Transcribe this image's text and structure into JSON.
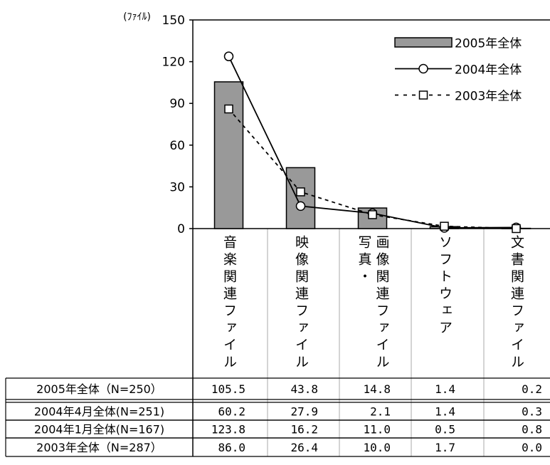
{
  "chart_data": {
    "type": "bar",
    "ylabel": "(ﾌｧｲﾙ)",
    "ylim": [
      0,
      150
    ],
    "yticks": [
      0,
      30,
      60,
      90,
      120,
      150
    ],
    "categories": [
      "音楽関連ファイル",
      "映像関連ファイル",
      "写真・\n画像関連ファイル",
      "ソフトウェア",
      "文書関連ファイル"
    ],
    "series": [
      {
        "name": "2005年全体",
        "type": "bar",
        "values": [
          105.5,
          43.8,
          14.8,
          1.4,
          0.2
        ],
        "color": "#999999"
      },
      {
        "name": "2004年全体",
        "type": "line",
        "marker": "circle",
        "line_style": "solid",
        "values": [
          123.8,
          16.2,
          11.0,
          0.5,
          0.8
        ],
        "color": "#000000"
      },
      {
        "name": "2003年全体",
        "type": "line",
        "marker": "square",
        "line_style": "dashed",
        "values": [
          86.0,
          26.4,
          10.0,
          1.7,
          0.0
        ],
        "color": "#000000"
      }
    ],
    "legend": "top-right",
    "grid": false
  },
  "table": {
    "rows": [
      {
        "label": "2005年全体（N=250）",
        "values": [
          "105.5",
          "43.8",
          "14.8",
          "1.4",
          "0.2"
        ]
      },
      {
        "label": "2004年4月全体(N=251)",
        "values": [
          "60.2",
          "27.9",
          "2.1",
          "1.4",
          "0.3"
        ]
      },
      {
        "label": "2004年1月全体(N=167)",
        "values": [
          "123.8",
          "16.2",
          "11.0",
          "0.5",
          "0.8"
        ]
      },
      {
        "label": "2003年全体（N=287）",
        "values": [
          "86.0",
          "26.4",
          "10.0",
          "1.7",
          "0.0"
        ]
      }
    ]
  }
}
